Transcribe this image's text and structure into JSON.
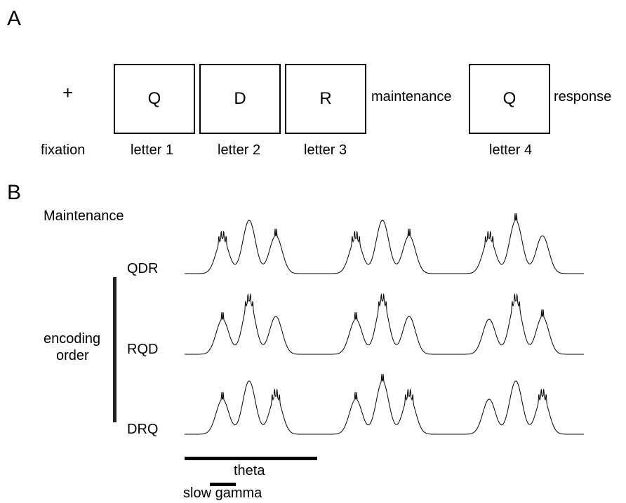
{
  "panel_a": {
    "label": "A",
    "fixation_symbol": "+",
    "fixation_label": "fixation",
    "letters": [
      {
        "letter": "Q",
        "label": "letter 1"
      },
      {
        "letter": "D",
        "label": "letter 2"
      },
      {
        "letter": "R",
        "label": "letter 3"
      },
      {
        "letter": "Q",
        "label": "letter 4"
      }
    ],
    "maintenance": "maintenance",
    "response": "response"
  },
  "panel_b": {
    "label": "B",
    "title": "Maintenance",
    "encoding_label_1": "encoding",
    "encoding_label_2": "order",
    "rows": [
      {
        "name": "QDR"
      },
      {
        "name": "RQD"
      },
      {
        "name": "DRQ"
      }
    ],
    "theta_label": "theta",
    "slow_gamma_label": "slow gamma"
  }
}
